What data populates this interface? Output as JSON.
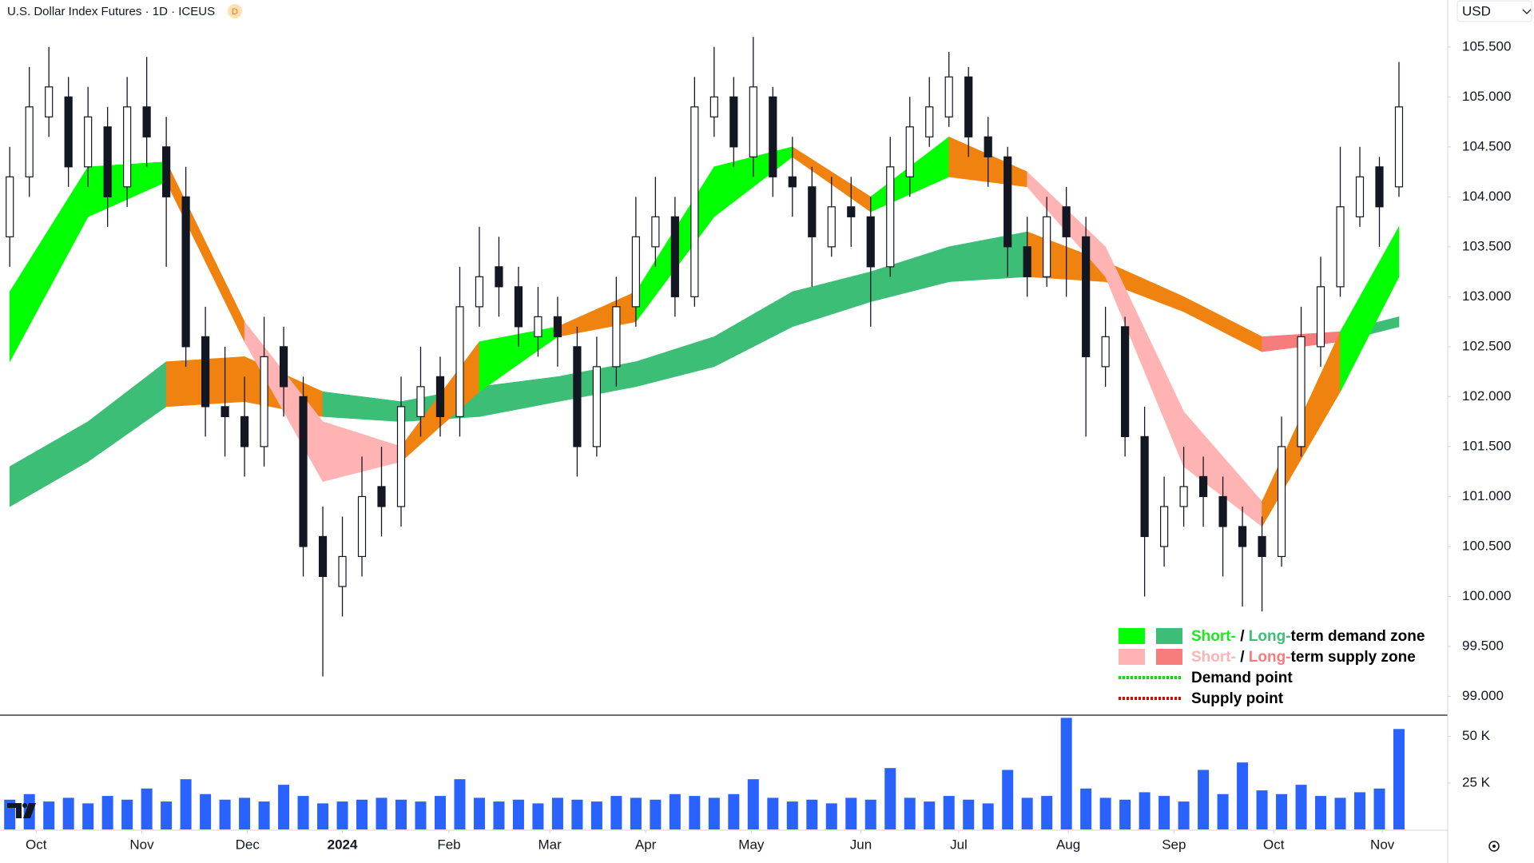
{
  "chart_data": {
    "type": "candlestick",
    "title": "U.S. Dollar Index Futures · 1D · ICEUS",
    "badge": "D",
    "currency": "USD",
    "ylim": [
      98.82,
      105.97
    ],
    "yticks": [
      {
        "value": 99,
        "label": "99.000"
      },
      {
        "value": 99.5,
        "label": "99.500"
      },
      {
        "value": 100,
        "label": "100.000"
      },
      {
        "value": 100.5,
        "label": "100.500"
      },
      {
        "value": 101,
        "label": "101.000"
      },
      {
        "value": 101.5,
        "label": "101.500"
      },
      {
        "value": 102,
        "label": "102.000"
      },
      {
        "value": 102.5,
        "label": "102.500"
      },
      {
        "value": 103,
        "label": "103.000"
      },
      {
        "value": 103.5,
        "label": "103.500"
      },
      {
        "value": 104,
        "label": "104.000"
      },
      {
        "value": 104.5,
        "label": "104.500"
      },
      {
        "value": 105,
        "label": "105.000"
      },
      {
        "value": 105.5,
        "label": "105.500"
      }
    ],
    "xticks": [
      {
        "value": 1.35,
        "label": "Oct"
      },
      {
        "value": 6.75,
        "label": "Nov"
      },
      {
        "value": 12.15,
        "label": "Dec"
      },
      {
        "value": 17,
        "label": "2024"
      },
      {
        "value": 22.45,
        "label": "Feb"
      },
      {
        "value": 27.6,
        "label": "Mar"
      },
      {
        "value": 32.5,
        "label": "Apr"
      },
      {
        "value": 37.9,
        "label": "May"
      },
      {
        "value": 43.5,
        "label": "Jun"
      },
      {
        "value": 48.5,
        "label": "Jul"
      },
      {
        "value": 54.1,
        "label": "Aug"
      },
      {
        "value": 59.5,
        "label": "Sep"
      },
      {
        "value": 64.6,
        "label": "Oct"
      },
      {
        "value": 70.15,
        "label": "Nov"
      }
    ],
    "open": [
      103.6,
      104.2,
      104.8,
      105.0,
      104.3,
      104.7,
      104.1,
      104.9,
      104.5,
      104.0,
      102.6,
      101.9,
      101.8,
      101.5,
      102.5,
      102.0,
      100.6,
      100.1,
      100.4,
      101.1,
      100.9,
      101.8,
      102.2,
      101.8,
      102.9,
      103.3,
      103.1,
      102.6,
      102.8,
      102.5,
      101.5,
      102.3,
      102.9,
      103.5,
      103.8,
      103.0,
      104.8,
      105.0,
      104.4,
      105.0,
      104.2,
      104.1,
      103.5,
      103.9,
      103.8,
      103.3,
      104.2,
      104.6,
      104.8,
      105.2,
      104.6,
      104.4,
      103.5,
      103.2,
      103.9,
      103.6,
      102.3,
      102.7,
      101.6,
      100.5,
      100.9,
      101.2,
      101.0,
      100.7,
      100.6,
      100.4,
      101.5,
      102.5,
      103.1,
      103.8,
      104.3,
      104.1
    ],
    "high": [
      104.5,
      105.3,
      105.5,
      105.2,
      105.1,
      104.9,
      105.2,
      105.4,
      104.8,
      104.3,
      102.9,
      102.5,
      102.2,
      102.8,
      102.7,
      102.2,
      100.9,
      100.8,
      101.4,
      101.5,
      102.2,
      102.5,
      102.4,
      103.3,
      103.7,
      103.6,
      103.3,
      103.1,
      103.0,
      102.7,
      102.6,
      103.2,
      104.0,
      104.2,
      104.0,
      105.2,
      105.5,
      105.2,
      105.6,
      105.1,
      104.6,
      104.3,
      104.2,
      104.2,
      104.0,
      104.6,
      105.0,
      105.2,
      105.45,
      105.3,
      104.8,
      104.5,
      103.8,
      104.0,
      104.1,
      103.8,
      102.9,
      102.8,
      101.9,
      101.2,
      101.5,
      101.4,
      101.2,
      100.9,
      100.8,
      101.8,
      102.9,
      103.4,
      104.5,
      104.5,
      104.4,
      105.35
    ],
    "low": [
      103.3,
      104.0,
      104.6,
      104.1,
      104.1,
      103.7,
      103.9,
      104.3,
      103.3,
      102.3,
      101.6,
      101.4,
      101.2,
      101.3,
      101.8,
      100.2,
      99.2,
      99.8,
      100.2,
      100.6,
      100.7,
      101.6,
      101.6,
      101.6,
      102.7,
      102.8,
      102.5,
      102.4,
      102.3,
      101.2,
      101.4,
      102.1,
      102.7,
      103.3,
      102.8,
      102.9,
      104.6,
      104.3,
      104.2,
      104.0,
      103.8,
      103.1,
      103.4,
      103.5,
      102.7,
      103.2,
      104.0,
      104.5,
      104.7,
      104.4,
      104.1,
      103.2,
      103.0,
      103.1,
      103.0,
      101.6,
      102.1,
      101.4,
      100.0,
      100.3,
      100.7,
      100.7,
      100.2,
      99.9,
      99.85,
      100.3,
      101.4,
      102.3,
      103.0,
      103.7,
      103.5,
      104.0
    ],
    "close": [
      104.2,
      104.9,
      105.1,
      104.3,
      104.8,
      104.0,
      104.9,
      104.6,
      104.0,
      102.5,
      101.9,
      101.8,
      101.5,
      102.4,
      102.1,
      100.5,
      100.2,
      100.4,
      101.0,
      100.9,
      101.9,
      102.1,
      101.8,
      102.9,
      103.2,
      103.1,
      102.7,
      102.8,
      102.6,
      101.5,
      102.3,
      102.9,
      103.6,
      103.8,
      103.0,
      104.9,
      105.0,
      104.5,
      105.1,
      104.2,
      104.1,
      103.6,
      103.9,
      103.8,
      103.3,
      104.3,
      104.7,
      104.9,
      105.2,
      104.6,
      104.4,
      103.5,
      103.2,
      103.8,
      103.6,
      102.4,
      102.6,
      101.6,
      100.6,
      100.9,
      101.1,
      101.0,
      100.7,
      100.5,
      100.4,
      101.5,
      102.6,
      103.1,
      103.9,
      104.2,
      103.9,
      104.9
    ],
    "volume": {
      "color": "#2962ff",
      "ylim": [
        0,
        61000
      ],
      "yticks": [
        {
          "value": 25000,
          "label": "25 K"
        },
        {
          "value": 50000,
          "label": "50 K"
        }
      ],
      "values": [
        16000,
        19000,
        15000,
        17000,
        14000,
        18000,
        16000,
        22000,
        15000,
        27000,
        19000,
        16000,
        17000,
        15000,
        24000,
        18000,
        14000,
        15000,
        16000,
        17000,
        16000,
        15000,
        18000,
        27000,
        17000,
        15000,
        16000,
        14000,
        17000,
        16000,
        15000,
        18000,
        17000,
        16000,
        19000,
        18000,
        17000,
        19000,
        27000,
        17000,
        15000,
        16000,
        14000,
        17000,
        16000,
        33000,
        17000,
        15000,
        18000,
        16000,
        14000,
        32000,
        17000,
        18000,
        60000,
        22000,
        17000,
        16000,
        20000,
        18000,
        15000,
        32000,
        19000,
        36000,
        21000,
        19000,
        24000,
        18000,
        17000,
        20000,
        22000,
        54000
      ]
    },
    "long_band": {
      "x": [
        0,
        4,
        8,
        12,
        16,
        20,
        24,
        28,
        32,
        36,
        40,
        44,
        48,
        52,
        56,
        60,
        64,
        68,
        71
      ],
      "upper": [
        101.3,
        101.75,
        102.35,
        102.4,
        102.05,
        101.95,
        102.1,
        102.2,
        102.35,
        102.6,
        103.05,
        103.25,
        103.5,
        103.65,
        103.35,
        103.0,
        102.6,
        102.65,
        102.8
      ],
      "lower": [
        100.9,
        101.35,
        101.9,
        101.95,
        101.8,
        101.75,
        101.8,
        101.95,
        102.1,
        102.3,
        102.7,
        102.95,
        103.15,
        103.2,
        103.15,
        102.85,
        102.45,
        102.55,
        102.7
      ],
      "colors": [
        "#3dbe77",
        "#3dbe77",
        "#f0820f",
        "#f0820f",
        "#3dbe77",
        "#3dbe77",
        "#3dbe77",
        "#3dbe77",
        "#3dbe77",
        "#3dbe77",
        "#3dbe77",
        "#3dbe77",
        "#3dbe77",
        "#f0820f",
        "#f0820f",
        "#f0820f",
        "#f77c7c",
        "#3dbe77"
      ]
    },
    "short_band": {
      "x": [
        0,
        4,
        8,
        12,
        16,
        20,
        24,
        28,
        32,
        36,
        40,
        44,
        48,
        52,
        56,
        60,
        64,
        68,
        71
      ],
      "upper": [
        103.05,
        104.3,
        104.35,
        102.75,
        101.75,
        101.5,
        102.55,
        102.7,
        103.05,
        104.3,
        104.5,
        104.0,
        104.6,
        104.25,
        103.5,
        101.85,
        100.95,
        102.65,
        103.7
      ],
      "lower": [
        102.35,
        103.8,
        104.15,
        102.55,
        101.15,
        101.35,
        102.05,
        102.6,
        102.75,
        103.8,
        104.4,
        103.85,
        104.2,
        104.1,
        103.2,
        101.3,
        100.7,
        102.05,
        103.2
      ],
      "colors": [
        "#00ff00",
        "#00ff00",
        "#f0820f",
        "#ffb3b3",
        "#ffb3b3",
        "#f0820f",
        "#00ff00",
        "#f0820f",
        "#00ff00",
        "#00ff00",
        "#f0820f",
        "#00ff00",
        "#f0820f",
        "#ffb3b3",
        "#ffb3b3",
        "#ffb3b3",
        "#f0820f",
        "#00ff00"
      ]
    },
    "legend": [
      {
        "swatches": [
          "#00ff00",
          "#3dbe77"
        ],
        "parts": [
          {
            "text": "Short-",
            "color": "#1ee81e"
          },
          {
            "text": " / ",
            "color": "#000000"
          },
          {
            "text": "Long-",
            "color": "#3dbe77"
          },
          {
            "text": "term demand zone",
            "color": "#000000"
          }
        ]
      },
      {
        "swatches": [
          "#ffb3b3",
          "#f77c7c"
        ],
        "parts": [
          {
            "text": "Short-",
            "color": "#ffb3b3"
          },
          {
            "text": " / ",
            "color": "#000000"
          },
          {
            "text": "Long-",
            "color": "#f77c7c"
          },
          {
            "text": "term supply zone",
            "color": "#000000"
          }
        ]
      },
      {
        "line": "#00e600",
        "parts": [
          {
            "text": "Demand point",
            "color": "#000000"
          }
        ]
      },
      {
        "line": "#e60000",
        "parts": [
          {
            "text": "Supply point",
            "color": "#000000"
          }
        ]
      }
    ]
  }
}
